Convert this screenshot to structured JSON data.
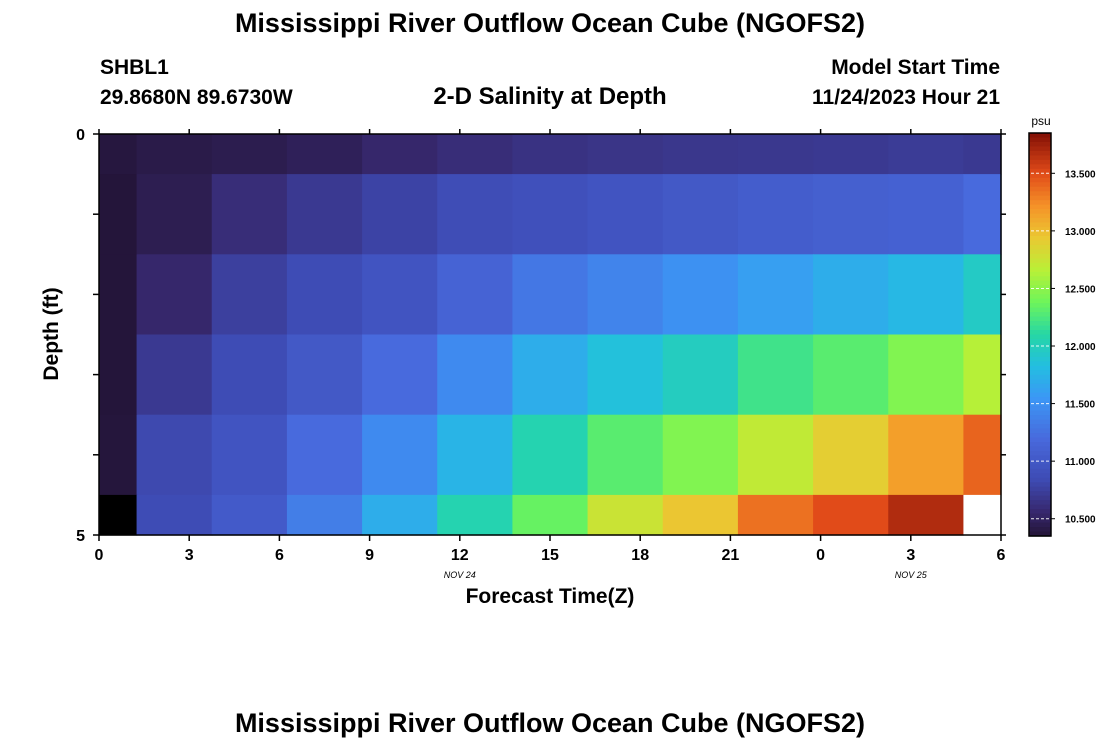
{
  "header": {
    "title": "Mississippi River Outflow Ocean Cube (NGOFS2)",
    "station_id": "SHBL1",
    "station_coords": "29.8680N  89.6730W",
    "plot_title": "2-D Salinity at Depth",
    "model_start_label": "Model Start Time",
    "model_start_value": "11/24/2023 Hour 21"
  },
  "footer": {
    "repeated_title": "Mississippi River Outflow Ocean Cube (NGOFS2)"
  },
  "chart_data": {
    "type": "heatmap",
    "title": "2-D Salinity at Depth",
    "xlabel": "Forecast Time(Z)",
    "ylabel": "Depth (ft)",
    "x_ticks": [
      "0",
      "3",
      "6",
      "9",
      "12",
      "15",
      "18",
      "21",
      "0",
      "3",
      "6"
    ],
    "y_ticks": [
      "0",
      "5"
    ],
    "date_labels": [
      {
        "text": "NOV 24",
        "at_hour": 12
      },
      {
        "text": "NOV 25",
        "at_hour": 27
      }
    ],
    "xlim": [
      0,
      30
    ],
    "ylim": [
      0,
      5
    ],
    "x_edges": [
      0,
      1.25,
      3.75,
      6.25,
      8.75,
      11.25,
      13.75,
      16.25,
      18.75,
      21.25,
      23.75,
      26.25,
      28.75,
      30
    ],
    "y_edges": [
      0,
      0.5,
      1.5,
      2.5,
      3.5,
      4.5,
      5
    ],
    "missing_fill": "#ffffff",
    "grid": [
      [
        10.38,
        10.42,
        10.44,
        10.48,
        10.55,
        10.6,
        10.64,
        10.66,
        10.68,
        10.69,
        10.7,
        10.72,
        10.7
      ],
      [
        10.36,
        10.45,
        10.6,
        10.7,
        10.78,
        10.86,
        10.9,
        10.95,
        11.0,
        11.05,
        11.08,
        11.1,
        11.2
      ],
      [
        10.36,
        10.55,
        10.75,
        10.85,
        10.95,
        11.12,
        11.3,
        11.4,
        11.5,
        11.6,
        11.7,
        11.78,
        11.95
      ],
      [
        10.36,
        10.7,
        10.85,
        11.0,
        11.2,
        11.45,
        11.7,
        11.85,
        11.98,
        12.2,
        12.3,
        12.45,
        12.65
      ],
      [
        10.37,
        10.82,
        10.95,
        11.2,
        11.45,
        11.75,
        12.05,
        12.3,
        12.45,
        12.7,
        12.9,
        13.15,
        13.4
      ],
      [
        10.3,
        10.85,
        11.02,
        11.35,
        11.7,
        12.05,
        12.35,
        12.75,
        12.95,
        13.35,
        13.5,
        13.68,
        null
      ]
    ],
    "colorbar": {
      "unit": "psu",
      "range": [
        10.35,
        13.85
      ],
      "ticks": [
        "10.500",
        "11.000",
        "11.500",
        "12.000",
        "12.500",
        "13.000",
        "13.500"
      ]
    }
  }
}
